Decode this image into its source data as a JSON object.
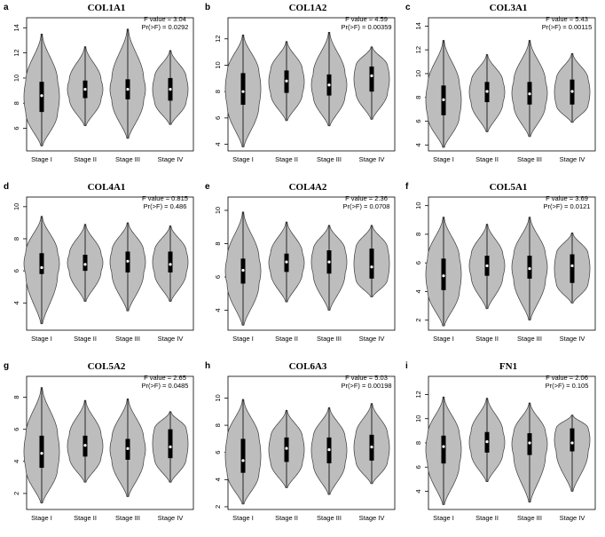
{
  "chart_data": [
    {
      "type": "violin",
      "panel_label": "a",
      "title": "COL1A1",
      "stats": {
        "f_label": "F value = 3.04",
        "p_label": "Pr(>F) = 0.0292"
      },
      "categories": [
        "Stage I",
        "Stage II",
        "Stage III",
        "Stage IV"
      ],
      "y_ticks": [
        6,
        8,
        10,
        12,
        14
      ],
      "ylim": [
        4.2,
        14.8
      ],
      "violins": [
        {
          "min": 4.6,
          "q1": 7.3,
          "median": 8.6,
          "q3": 9.7,
          "max": 13.5
        },
        {
          "min": 6.2,
          "q1": 8.4,
          "median": 9.1,
          "q3": 9.8,
          "max": 12.5
        },
        {
          "min": 5.2,
          "q1": 8.3,
          "median": 9.1,
          "q3": 9.9,
          "max": 13.9
        },
        {
          "min": 6.3,
          "q1": 8.2,
          "median": 9.1,
          "q3": 10.0,
          "max": 12.2
        }
      ]
    },
    {
      "type": "violin",
      "panel_label": "b",
      "title": "COL1A2",
      "stats": {
        "f_label": "F value = 4.59",
        "p_label": "Pr(>F) = 0.00359"
      },
      "categories": [
        "Stage I",
        "Stage II",
        "Stage III",
        "Stage IV"
      ],
      "y_ticks": [
        4,
        6,
        8,
        10,
        12
      ],
      "ylim": [
        3.5,
        13.6
      ],
      "violins": [
        {
          "min": 3.8,
          "q1": 7.0,
          "median": 8.0,
          "q3": 9.4,
          "max": 12.3
        },
        {
          "min": 5.8,
          "q1": 7.9,
          "median": 8.8,
          "q3": 9.6,
          "max": 11.8
        },
        {
          "min": 5.4,
          "q1": 7.7,
          "median": 8.5,
          "q3": 9.3,
          "max": 12.5
        },
        {
          "min": 5.9,
          "q1": 8.0,
          "median": 9.2,
          "q3": 9.9,
          "max": 11.4
        }
      ]
    },
    {
      "type": "violin",
      "panel_label": "c",
      "title": "COL3A1",
      "stats": {
        "f_label": "F value = 5.43",
        "p_label": "Pr(>F) = 0.00115"
      },
      "categories": [
        "Stage I",
        "Stage II",
        "Stage III",
        "Stage IV"
      ],
      "y_ticks": [
        4,
        6,
        8,
        10,
        12,
        14
      ],
      "ylim": [
        3.5,
        14.7
      ],
      "violins": [
        {
          "min": 3.8,
          "q1": 6.5,
          "median": 7.8,
          "q3": 9.0,
          "max": 12.8
        },
        {
          "min": 5.1,
          "q1": 7.6,
          "median": 8.5,
          "q3": 9.3,
          "max": 11.6
        },
        {
          "min": 4.7,
          "q1": 7.4,
          "median": 8.3,
          "q3": 9.3,
          "max": 12.8
        },
        {
          "min": 5.9,
          "q1": 7.4,
          "median": 8.5,
          "q3": 9.5,
          "max": 11.7
        }
      ]
    },
    {
      "type": "violin",
      "panel_label": "d",
      "title": "COL4A1",
      "stats": {
        "f_label": "F value = 0.815",
        "p_label": "Pr(>F) = 0.486"
      },
      "categories": [
        "Stage I",
        "Stage II",
        "Stage III",
        "Stage IV"
      ],
      "y_ticks": [
        4,
        6,
        8,
        10
      ],
      "ylim": [
        2.3,
        10.6
      ],
      "violins": [
        {
          "min": 2.7,
          "q1": 5.8,
          "median": 6.2,
          "q3": 7.1,
          "max": 9.4
        },
        {
          "min": 4.1,
          "q1": 6.0,
          "median": 6.4,
          "q3": 7.0,
          "max": 8.9
        },
        {
          "min": 3.5,
          "q1": 5.9,
          "median": 6.6,
          "q3": 7.2,
          "max": 9.0
        },
        {
          "min": 4.1,
          "q1": 5.9,
          "median": 6.4,
          "q3": 7.2,
          "max": 8.8
        }
      ]
    },
    {
      "type": "violin",
      "panel_label": "e",
      "title": "COL4A2",
      "stats": {
        "f_label": "F value = 2.36",
        "p_label": "Pr(>F) = 0.0708"
      },
      "categories": [
        "Stage I",
        "Stage II",
        "Stage III",
        "Stage IV"
      ],
      "y_ticks": [
        4,
        6,
        8,
        10
      ],
      "ylim": [
        2.8,
        10.8
      ],
      "violins": [
        {
          "min": 3.1,
          "q1": 5.6,
          "median": 6.4,
          "q3": 7.1,
          "max": 9.9
        },
        {
          "min": 4.5,
          "q1": 6.3,
          "median": 6.9,
          "q3": 7.4,
          "max": 9.3
        },
        {
          "min": 4.0,
          "q1": 6.2,
          "median": 6.9,
          "q3": 7.6,
          "max": 9.1
        },
        {
          "min": 4.8,
          "q1": 5.9,
          "median": 6.6,
          "q3": 7.7,
          "max": 9.1
        }
      ]
    },
    {
      "type": "violin",
      "panel_label": "f",
      "title": "COL5A1",
      "stats": {
        "f_label": "F value = 3.69",
        "p_label": "Pr(>F) = 0.0121"
      },
      "categories": [
        "Stage I",
        "Stage II",
        "Stage III",
        "Stage IV"
      ],
      "y_ticks": [
        2,
        4,
        6,
        8,
        10
      ],
      "ylim": [
        1.3,
        10.6
      ],
      "violins": [
        {
          "min": 1.6,
          "q1": 4.1,
          "median": 5.1,
          "q3": 6.3,
          "max": 9.2
        },
        {
          "min": 2.8,
          "q1": 5.1,
          "median": 5.8,
          "q3": 6.5,
          "max": 8.7
        },
        {
          "min": 2.0,
          "q1": 4.9,
          "median": 5.6,
          "q3": 6.5,
          "max": 9.2
        },
        {
          "min": 3.2,
          "q1": 4.6,
          "median": 5.8,
          "q3": 6.6,
          "max": 8.1
        }
      ]
    },
    {
      "type": "violin",
      "panel_label": "g",
      "title": "COL5A2",
      "stats": {
        "f_label": "F value = 2.65",
        "p_label": "Pr(>F) = 0.0485"
      },
      "categories": [
        "Stage I",
        "Stage II",
        "Stage III",
        "Stage IV"
      ],
      "y_ticks": [
        2,
        4,
        6,
        8
      ],
      "ylim": [
        1.0,
        9.3
      ],
      "violins": [
        {
          "min": 1.4,
          "q1": 3.6,
          "median": 4.5,
          "q3": 5.6,
          "max": 8.6
        },
        {
          "min": 2.7,
          "q1": 4.3,
          "median": 5.0,
          "q3": 5.6,
          "max": 7.8
        },
        {
          "min": 1.8,
          "q1": 4.1,
          "median": 4.8,
          "q3": 5.4,
          "max": 7.9
        },
        {
          "min": 2.7,
          "q1": 4.2,
          "median": 4.9,
          "q3": 6.0,
          "max": 7.1
        }
      ]
    },
    {
      "type": "violin",
      "panel_label": "h",
      "title": "COL6A3",
      "stats": {
        "f_label": "F value = 5.03",
        "p_label": "Pr(>F) = 0.00198"
      },
      "categories": [
        "Stage I",
        "Stage II",
        "Stage III",
        "Stage IV"
      ],
      "y_ticks": [
        2,
        4,
        6,
        8,
        10
      ],
      "ylim": [
        1.8,
        11.6
      ],
      "violins": [
        {
          "min": 2.2,
          "q1": 4.5,
          "median": 5.4,
          "q3": 7.0,
          "max": 9.9
        },
        {
          "min": 3.4,
          "q1": 5.3,
          "median": 6.3,
          "q3": 7.1,
          "max": 9.1
        },
        {
          "min": 2.9,
          "q1": 5.2,
          "median": 6.2,
          "q3": 7.1,
          "max": 9.3
        },
        {
          "min": 3.7,
          "q1": 5.4,
          "median": 6.4,
          "q3": 7.3,
          "max": 9.6
        }
      ]
    },
    {
      "type": "violin",
      "panel_label": "i",
      "title": "FN1",
      "stats": {
        "f_label": "F value = 2.06",
        "p_label": "Pr(>F) = 0.105"
      },
      "categories": [
        "Stage I",
        "Stage II",
        "Stage III",
        "Stage IV"
      ],
      "y_ticks": [
        4,
        6,
        8,
        10,
        12
      ],
      "ylim": [
        2.5,
        13.5
      ],
      "violins": [
        {
          "min": 2.9,
          "q1": 6.3,
          "median": 7.7,
          "q3": 8.6,
          "max": 11.8
        },
        {
          "min": 4.8,
          "q1": 7.2,
          "median": 8.1,
          "q3": 8.9,
          "max": 11.7
        },
        {
          "min": 3.1,
          "q1": 7.0,
          "median": 8.0,
          "q3": 8.8,
          "max": 11.3
        },
        {
          "min": 4.0,
          "q1": 7.3,
          "median": 8.0,
          "q3": 9.2,
          "max": 10.3
        }
      ]
    }
  ],
  "colors": {
    "violin_fill": "#bdbdbd",
    "violin_stroke": "#3a3a3a",
    "box": "#000000",
    "median": "#ffffff",
    "axis": "#000000"
  }
}
